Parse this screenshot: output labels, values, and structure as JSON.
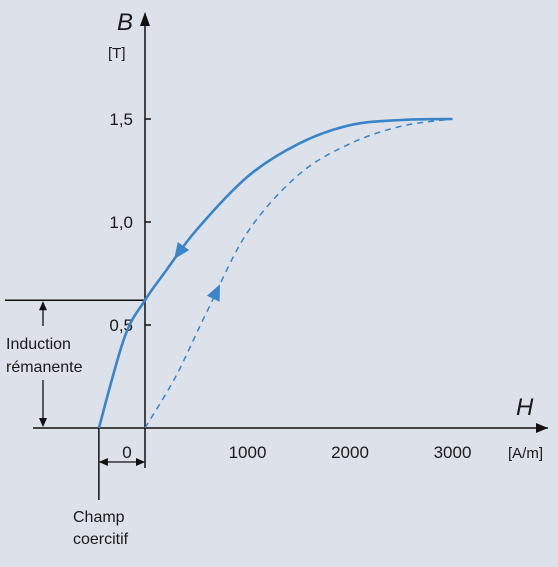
{
  "chart_data": {
    "type": "line",
    "xlabel": "H",
    "xunit": "[A/m]",
    "ylabel": "B",
    "yunit": "[T]",
    "x_ticks": [
      {
        "value": 0,
        "label": "0"
      },
      {
        "value": 1000,
        "label": "1000"
      },
      {
        "value": 2000,
        "label": "2000"
      },
      {
        "value": 3000,
        "label": "3000"
      }
    ],
    "y_ticks": [
      {
        "value": 0.5,
        "label": "0,5"
      },
      {
        "value": 1.0,
        "label": "1,0"
      },
      {
        "value": 1.5,
        "label": "1,5"
      }
    ],
    "xlim": [
      -500,
      3200
    ],
    "ylim": [
      0,
      1.75
    ],
    "series": [
      {
        "style": "solid",
        "color": "#3a85c8",
        "direction": "decreasing H",
        "points": [
          [
            3000,
            1.5
          ],
          [
            2500,
            1.495
          ],
          [
            2000,
            1.47
          ],
          [
            1500,
            1.38
          ],
          [
            1000,
            1.22
          ],
          [
            500,
            0.96
          ],
          [
            200,
            0.76
          ],
          [
            0,
            0.62
          ],
          [
            -200,
            0.44
          ],
          [
            -450,
            0.0
          ]
        ]
      },
      {
        "style": "dashed",
        "color": "#3a85c8",
        "direction": "increasing H",
        "points": [
          [
            0,
            0.0
          ],
          [
            300,
            0.25
          ],
          [
            600,
            0.56
          ],
          [
            1000,
            0.95
          ],
          [
            1500,
            1.23
          ],
          [
            2000,
            1.38
          ],
          [
            2500,
            1.465
          ],
          [
            3000,
            1.5
          ]
        ]
      }
    ],
    "annotations": {
      "remanence_line1": "Induction",
      "remanence_line2": "rémanente",
      "remanence_value": 0.62,
      "coercive_line1": "Champ",
      "coercive_line2": "coercitif",
      "coercive_value": -450
    },
    "grid": false
  }
}
